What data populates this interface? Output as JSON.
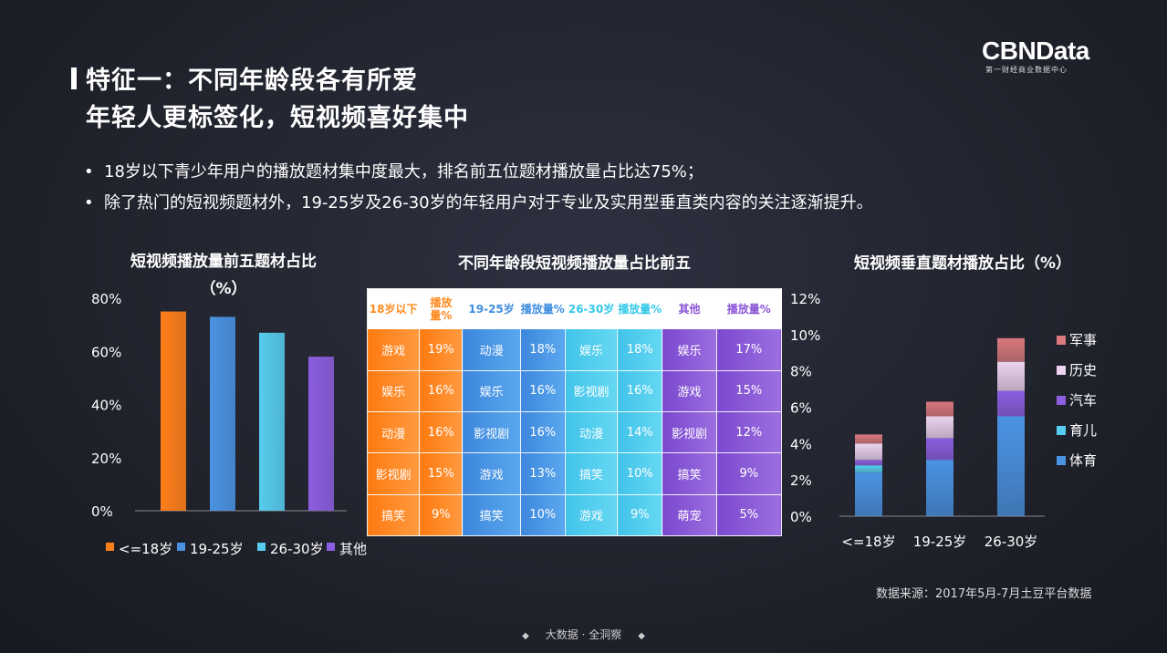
{
  "header": {
    "title_line1": "特征一：不同年龄段各有所爱",
    "title_line2": "年轻人更标签化，短视频喜好集中",
    "logo": "CBNData",
    "logo_sub": "第一财经商业数据中心"
  },
  "bullets": [
    "18岁以下青少年用户的播放题材集中度最大，排名前五位题材播放量占比达75%；",
    "除了热门的短视频题材外，19-25岁及26-30岁的年轻用户对于专业及实用型垂直类内容的关注逐渐提升。"
  ],
  "bullet_symbol": "•",
  "source": "数据来源：2017年5月-7月土豆平台数据",
  "footer": {
    "text": "大数据 · 全洞察",
    "diamond": "◆"
  },
  "chart_data": [
    {
      "type": "bar",
      "title_line1": "短视频播放量前五题材占比",
      "title_line2": "（%）",
      "categories": [
        "<=18岁",
        "19-25岁",
        "26-30岁",
        "其他"
      ],
      "values": [
        75,
        73,
        67,
        58
      ],
      "colors": [
        "#ff7f1a",
        "#4a93e3",
        "#56cdee",
        "#8c5ee0"
      ],
      "yticks": [
        "0%",
        "20%",
        "40%",
        "60%",
        "80%"
      ],
      "ylim": [
        0,
        80
      ],
      "legend": [
        "<=18岁",
        "19-25岁",
        "26-30岁",
        "其他"
      ],
      "legend_placement": "bottom"
    },
    {
      "type": "table",
      "title": "不同年龄段短视频播放量占比前五",
      "columns": [
        "18岁以下",
        "播放量%",
        "19-25岁",
        "播放量%",
        "26-30岁",
        "播放量%",
        "其他",
        "播放量%"
      ],
      "rows": [
        [
          "游戏",
          "19%",
          "动漫",
          "18%",
          "娱乐",
          "18%",
          "娱乐",
          "17%"
        ],
        [
          "娱乐",
          "16%",
          "娱乐",
          "16%",
          "影视剧",
          "16%",
          "游戏",
          "15%"
        ],
        [
          "动漫",
          "16%",
          "影视剧",
          "16%",
          "动漫",
          "14%",
          "影视剧",
          "12%"
        ],
        [
          "影视剧",
          "15%",
          "游戏",
          "13%",
          "搞笑",
          "10%",
          "搞笑",
          "9%"
        ],
        [
          "搞笑",
          "9%",
          "搞笑",
          "10%",
          "游戏",
          "9%",
          "萌宠",
          "5%"
        ]
      ]
    },
    {
      "type": "bar",
      "stacked": true,
      "title": "短视频垂直题材播放占比（%）",
      "categories": [
        "<=18岁",
        "19-25岁",
        "26-30岁"
      ],
      "yticks": [
        "0%",
        "2%",
        "4%",
        "6%",
        "8%",
        "10%",
        "12%"
      ],
      "ylim": [
        0,
        12
      ],
      "series": [
        {
          "name": "体育",
          "values": [
            2.4,
            3.1,
            5.5
          ],
          "color": "#4a93e3"
        },
        {
          "name": "育儿",
          "values": [
            0.4,
            0.0,
            0.0
          ],
          "color": "#56cdee"
        },
        {
          "name": "汽车",
          "values": [
            0.3,
            1.2,
            1.4
          ],
          "color": "#8c5ee0"
        },
        {
          "name": "历史",
          "values": [
            0.9,
            1.2,
            1.6
          ],
          "color": "#ecd3ef"
        },
        {
          "name": "军事",
          "values": [
            0.5,
            0.8,
            1.3
          ],
          "color": "#d9787d"
        }
      ],
      "legend_order": [
        "军事",
        "历史",
        "汽车",
        "育儿",
        "体育"
      ],
      "legend_placement": "right"
    }
  ]
}
